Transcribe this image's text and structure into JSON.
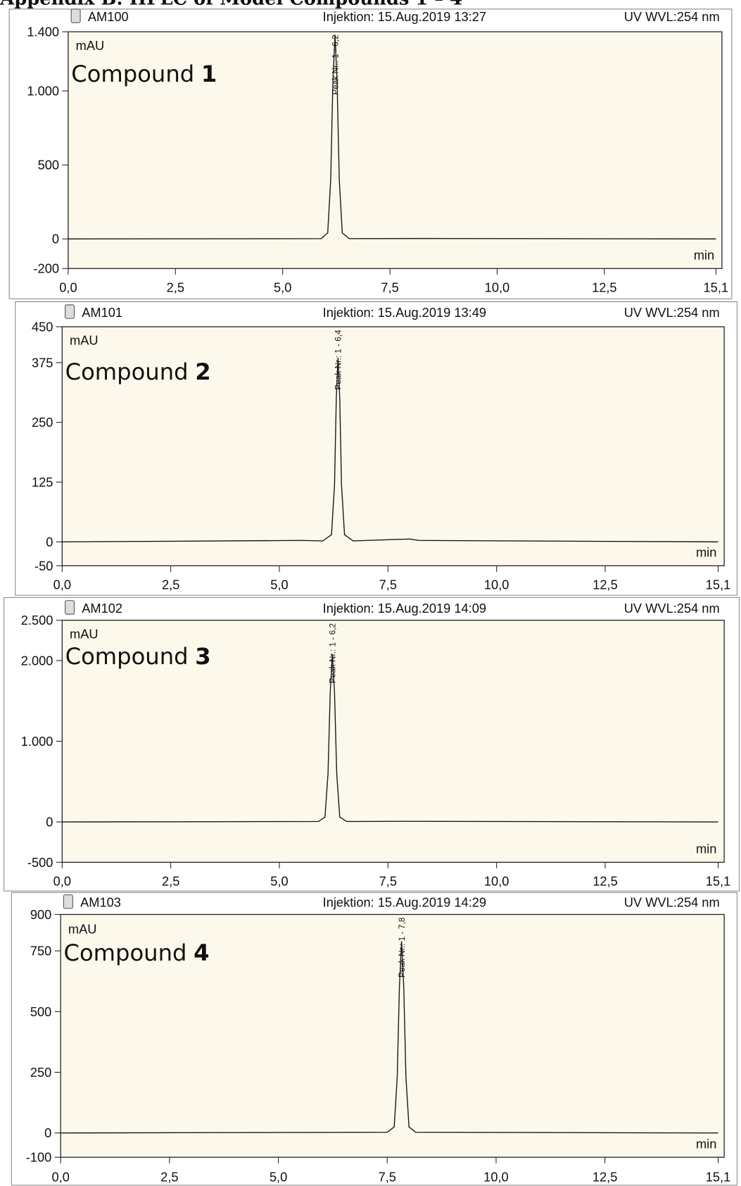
{
  "page_title": "Appendix B: HPLC of Model Compounds 1 – 4",
  "chart_data": [
    {
      "type": "line",
      "sample": "AM100",
      "injection": "Injektion: 15.Aug.2019 13:27",
      "detector": "UV WVL:254 nm",
      "y_label": "mAU",
      "x_label": "min",
      "compound_label": "Compound",
      "compound_number": "1",
      "annotation": "Peak Nr.: 1 - 6,2",
      "color": "#1a1a1a",
      "x": [
        0,
        5.9,
        6.05,
        6.12,
        6.17,
        6.22,
        6.27,
        6.32,
        6.39,
        6.55,
        8.3,
        15.1
      ],
      "values": [
        0,
        2,
        40,
        400,
        1050,
        1380,
        1050,
        400,
        40,
        2,
        3,
        0
      ],
      "xlim": [
        0,
        15.1
      ],
      "xticks": [
        {
          "value": 0,
          "label": "0,0"
        },
        {
          "value": 2.5,
          "label": "2,5"
        },
        {
          "value": 5,
          "label": "5,0"
        },
        {
          "value": 7.5,
          "label": "7,5"
        },
        {
          "value": 10,
          "label": "10,0"
        },
        {
          "value": 12.5,
          "label": "12,5"
        },
        {
          "value": 15.1,
          "label": "15,1"
        }
      ],
      "ylim": [
        -200,
        1400
      ],
      "yticks": [
        -200,
        0,
        500,
        {
          "value": 1000,
          "label": "1.000"
        },
        {
          "value": 1400,
          "label": "1.400"
        }
      ]
    },
    {
      "type": "line",
      "sample": "AM101",
      "injection": "Injektion: 15.Aug.2019 13:49",
      "detector": "UV WVL:254 nm",
      "y_label": "mAU",
      "x_label": "min",
      "compound_label": "Compound",
      "compound_number": "2",
      "annotation": "Peak Nr.: 1 - 6,4",
      "color": "#1a1a1a",
      "x": [
        0,
        5.5,
        6.0,
        6.2,
        6.27,
        6.31,
        6.35,
        6.39,
        6.43,
        6.5,
        6.7,
        8.0,
        8.2,
        15.1
      ],
      "values": [
        0,
        3,
        2,
        15,
        120,
        300,
        385,
        300,
        120,
        15,
        2,
        6,
        3,
        0
      ],
      "xlim": [
        0,
        15.1
      ],
      "xticks": [
        {
          "value": 0,
          "label": "0,0"
        },
        {
          "value": 2.5,
          "label": "2,5"
        },
        {
          "value": 5,
          "label": "5,0"
        },
        {
          "value": 7.5,
          "label": "7,5"
        },
        {
          "value": 10,
          "label": "10,0"
        },
        {
          "value": 12.5,
          "label": "12,5"
        },
        {
          "value": 15.1,
          "label": "15,1"
        }
      ],
      "ylim": [
        -50,
        450
      ],
      "yticks": [
        -50,
        0,
        125,
        250,
        375,
        450
      ]
    },
    {
      "type": "line",
      "sample": "AM102",
      "injection": "Injektion: 15.Aug.2019 14:09",
      "detector": "UV WVL:254 nm",
      "y_label": "mAU",
      "x_label": "min",
      "compound_label": "Compound",
      "compound_number": "3",
      "annotation": "Peak Nr.: 1 - 6,2",
      "color": "#1a1a1a",
      "x": [
        0,
        5.9,
        6.05,
        6.12,
        6.17,
        6.22,
        6.27,
        6.32,
        6.39,
        6.55,
        7.8,
        15.1
      ],
      "values": [
        0,
        5,
        60,
        600,
        1600,
        2080,
        1600,
        600,
        60,
        5,
        8,
        0
      ],
      "xlim": [
        0,
        15.1
      ],
      "xticks": [
        {
          "value": 0,
          "label": "0,0"
        },
        {
          "value": 2.5,
          "label": "2,5"
        },
        {
          "value": 5,
          "label": "5,0"
        },
        {
          "value": 7.5,
          "label": "7,5"
        },
        {
          "value": 10,
          "label": "10,0"
        },
        {
          "value": 12.5,
          "label": "12,5"
        },
        {
          "value": 15.1,
          "label": "15,1"
        }
      ],
      "ylim": [
        -500,
        2500
      ],
      "yticks": [
        -500,
        0,
        {
          "value": 1000,
          "label": "1.000"
        },
        {
          "value": 2000,
          "label": "2.000"
        },
        {
          "value": 2500,
          "label": "2.500"
        }
      ]
    },
    {
      "type": "line",
      "sample": "AM103",
      "injection": "Injektion: 15.Aug.2019 14:29",
      "detector": "UV WVL:254 nm",
      "y_label": "mAU",
      "x_label": "min",
      "compound_label": "Compound",
      "compound_number": "4",
      "annotation": "Peak Nr.: 1 - 7,8",
      "color": "#1a1a1a",
      "x": [
        0,
        7.5,
        7.66,
        7.73,
        7.78,
        7.83,
        7.88,
        7.93,
        8.0,
        8.15,
        15.1
      ],
      "values": [
        0,
        3,
        25,
        230,
        600,
        790,
        600,
        230,
        25,
        3,
        0
      ],
      "xlim": [
        0,
        15.1
      ],
      "xticks": [
        {
          "value": 0,
          "label": "0,0"
        },
        {
          "value": 2.5,
          "label": "2,5"
        },
        {
          "value": 5,
          "label": "5,0"
        },
        {
          "value": 7.5,
          "label": "7,5"
        },
        {
          "value": 10,
          "label": "10,0"
        },
        {
          "value": 12.5,
          "label": "12,5"
        },
        {
          "value": 15.1,
          "label": "15,1"
        }
      ],
      "ylim": [
        -100,
        900
      ],
      "yticks": [
        -100,
        0,
        250,
        500,
        750,
        900
      ]
    }
  ]
}
